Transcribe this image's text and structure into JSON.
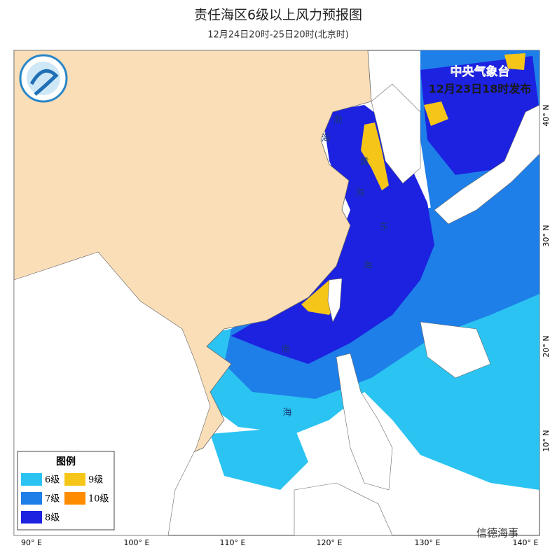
{
  "header": {
    "title": "责任海区6级以上风力预报图",
    "subtitle": "12月24日20时-25日20时(北京时)"
  },
  "issuer": {
    "name": "中央气象台",
    "time": "12月23日18时发布"
  },
  "legend": {
    "title": "图例",
    "items": [
      {
        "label": "6级",
        "color": "#2bc4f2"
      },
      {
        "label": "9级",
        "color": "#f5c518"
      },
      {
        "label": "7级",
        "color": "#1e7fe8"
      },
      {
        "label": "10级",
        "color": "#ff8c00"
      },
      {
        "label": "8级",
        "color": "#1c22e0"
      }
    ]
  },
  "sea_names": [
    "渤",
    "海",
    "黄",
    "海",
    "东",
    "海",
    "南",
    "海"
  ],
  "longitudes": [
    "90° E",
    "100° E",
    "110° E",
    "120° E",
    "130° E",
    "140° E"
  ],
  "latitudes": [
    "40° N",
    "30° N",
    "20° N",
    "10° N"
  ],
  "watermark": "信德海事"
}
